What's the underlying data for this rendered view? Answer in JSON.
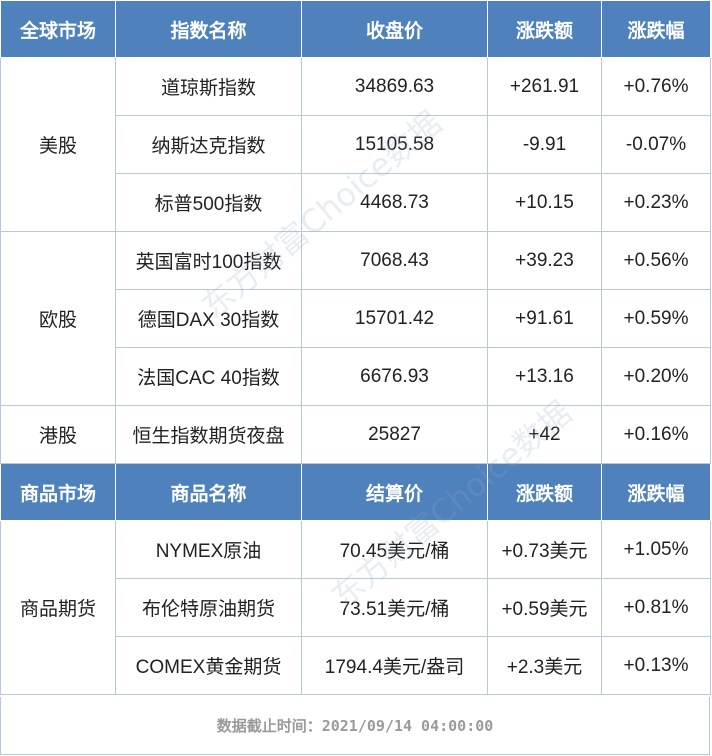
{
  "header1": [
    "全球市场",
    "指数名称",
    "收盘价",
    "涨跌额",
    "涨跌幅"
  ],
  "header2": [
    "商品市场",
    "商品名称",
    "结算价",
    "涨跌额",
    "涨跌幅"
  ],
  "groups1": [
    {
      "market": "美股",
      "rows": [
        [
          "道琼斯指数",
          "34869.63",
          "+261.91",
          "+0.76%"
        ],
        [
          "纳斯达克指数",
          "15105.58",
          "-9.91",
          "-0.07%"
        ],
        [
          "标普500指数",
          "4468.73",
          "+10.15",
          "+0.23%"
        ]
      ]
    },
    {
      "market": "欧股",
      "rows": [
        [
          "英国富时100指数",
          "7068.43",
          "+39.23",
          "+0.56%"
        ],
        [
          "德国DAX 30指数",
          "15701.42",
          "+91.61",
          "+0.59%"
        ],
        [
          "法国CAC 40指数",
          "6676.93",
          "+13.16",
          "+0.20%"
        ]
      ]
    },
    {
      "market": "港股",
      "rows": [
        [
          "恒生指数期货夜盘",
          "25827",
          "+42",
          "+0.16%"
        ]
      ]
    }
  ],
  "groups2": [
    {
      "market": "商品期货",
      "rows": [
        [
          "NYMEX原油",
          "70.45美元/桶",
          "+0.73美元",
          "+1.05%"
        ],
        [
          "布伦特原油期货",
          "73.51美元/桶",
          "+0.59美元",
          "+0.81%"
        ],
        [
          "COMEX黄金期货",
          "1794.4美元/盎司",
          "+2.3美元",
          "+0.13%"
        ]
      ]
    }
  ],
  "footer": "数据截止时间：2021/09/14 04:00:00",
  "watermark": "东方财富Choice数据",
  "colors": {
    "header_bg": "#4f81bd",
    "grid": "#b7c7dd",
    "watermark": "#96aac8"
  }
}
